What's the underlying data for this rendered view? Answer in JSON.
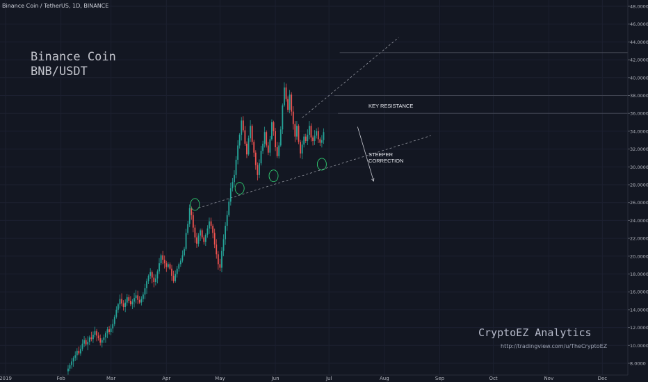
{
  "header": {
    "symbol_line": "Binance Coin / TetherUS, 1D, BINANCE"
  },
  "title": {
    "line1": "Binance Coin",
    "line2": "BNB/USDT"
  },
  "watermark": {
    "brand": "CryptoEZ Analytics",
    "url": "http://tradingview.com/u/TheCryptoEZ"
  },
  "annotations": {
    "key_resistance": "KEY RESISTANCE",
    "correction_line1": "STEEPER",
    "correction_line2": "CORRECTION"
  },
  "colors": {
    "background": "#131722",
    "up_candle": "#26a69a",
    "down_candle": "#ef5350",
    "circle": "#2ecc71",
    "grid": "#1c2030",
    "axis_text": "#b2b5be"
  },
  "chart_data": {
    "type": "candlestick",
    "symbol": "BNB/USDT",
    "timeframe": "1D",
    "exchange": "BINANCE",
    "ylim": [
      7.2,
      49.5
    ],
    "y_ticks": [
      "8.0000",
      "10.0000",
      "12.0000",
      "14.0000",
      "16.0000",
      "18.0000",
      "20.0000",
      "22.0000",
      "24.0000",
      "26.0000",
      "28.0000",
      "30.0000",
      "32.0000",
      "34.0000",
      "36.0000",
      "38.0000",
      "40.0000",
      "42.0000",
      "44.0000",
      "46.0000",
      "48.0000"
    ],
    "x_ticks": [
      {
        "label": "2019",
        "day": 0
      },
      {
        "label": "Feb",
        "day": 31
      },
      {
        "label": "Mar",
        "day": 59
      },
      {
        "label": "Apr",
        "day": 90
      },
      {
        "label": "May",
        "day": 120
      },
      {
        "label": "Jun",
        "day": 151
      },
      {
        "label": "Jul",
        "day": 181
      },
      {
        "label": "Aug",
        "day": 212
      },
      {
        "label": "Sep",
        "day": 243
      },
      {
        "label": "Oct",
        "day": 273
      },
      {
        "label": "Nov",
        "day": 304
      },
      {
        "label": "Dec",
        "day": 334
      }
    ],
    "first_candle_day": 35,
    "closes": [
      7.4,
      7.8,
      8.2,
      8.6,
      8.9,
      9.4,
      9.1,
      9.6,
      10.2,
      10.6,
      10.1,
      10.4,
      10.9,
      10.7,
      11.2,
      11.6,
      11.1,
      10.8,
      10.3,
      10.6,
      10.9,
      11.4,
      11.8,
      11.5,
      11.9,
      12.4,
      13.2,
      14.0,
      14.6,
      15.2,
      14.7,
      14.3,
      14.8,
      15.4,
      15.0,
      14.6,
      14.9,
      15.3,
      15.6,
      15.1,
      14.8,
      15.2,
      15.7,
      16.4,
      17.2,
      17.8,
      18.2,
      17.6,
      17.1,
      17.5,
      18.3,
      19.2,
      20.1,
      19.6,
      19.2,
      18.8,
      19.1,
      18.6,
      17.8,
      17.2,
      18.0,
      18.6,
      19.1,
      19.5,
      20.1,
      20.8,
      22.6,
      23.6,
      25.4,
      24.6,
      23.2,
      22.1,
      21.4,
      22.3,
      22.9,
      22.1,
      21.6,
      22.4,
      23.1,
      23.9,
      23.4,
      22.6,
      21.3,
      20.2,
      19.1,
      18.7,
      20.6,
      21.9,
      23.4,
      24.6,
      26.1,
      27.6,
      28.3,
      29.1,
      30.8,
      32.4,
      33.6,
      35.2,
      34.1,
      32.6,
      31.4,
      33.2,
      34.6,
      32.8,
      31.6,
      30.2,
      29.1,
      30.4,
      31.8,
      32.6,
      33.9,
      32.4,
      31.6,
      33.1,
      35.0,
      34.0,
      32.2,
      31.2,
      32.4,
      34.2,
      36.9,
      38.9,
      37.6,
      36.4,
      38.1,
      36.2,
      34.8,
      33.4,
      34.6,
      32.8,
      31.5,
      32.5,
      33.4,
      32.9,
      33.6,
      34.6,
      33.3,
      32.9,
      33.5,
      34.0,
      33.1,
      32.7,
      33.0,
      33.9
    ]
  }
}
